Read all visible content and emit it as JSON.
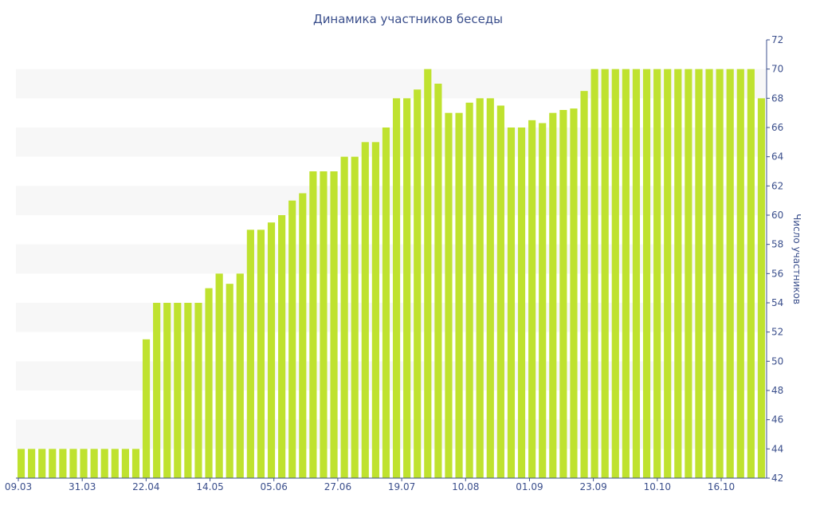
{
  "chart_data": {
    "type": "bar",
    "title": "Динамика участников беседы",
    "xlabel": "",
    "ylabel": "Число участников",
    "ylim": [
      42,
      72
    ],
    "y_ticks": [
      42,
      44,
      46,
      48,
      50,
      52,
      54,
      56,
      58,
      60,
      62,
      64,
      66,
      68,
      70,
      72
    ],
    "y_axis_side": "right",
    "x_tick_labels": [
      "09.03",
      "31.03",
      "22.04",
      "14.05",
      "05.06",
      "27.06",
      "19.07",
      "10.08",
      "01.09",
      "23.09",
      "10.10",
      "16.10"
    ],
    "grid": "alternating horizontal bands",
    "bar_color": "#bfe22f",
    "band_color": "#f7f7f7",
    "text_color": "#3b4f8c",
    "series": [
      {
        "values": [
          44,
          44,
          44,
          44,
          44,
          44,
          44,
          44,
          44,
          44,
          44,
          44,
          51.5,
          54,
          54,
          54,
          54,
          54,
          55,
          56,
          55.3,
          56,
          59,
          59,
          59.5,
          60,
          61,
          61.5,
          63,
          63,
          63,
          64,
          64,
          65,
          65,
          66,
          68,
          68,
          68.6,
          70,
          69,
          67,
          67,
          67.7,
          68,
          68,
          67.5,
          66,
          66,
          66.5,
          66.3,
          67,
          67.2,
          67.3,
          68.5,
          70,
          70,
          70,
          70,
          70,
          70,
          70,
          70,
          70,
          70,
          70,
          70,
          70,
          70,
          70,
          70,
          68
        ]
      }
    ]
  }
}
